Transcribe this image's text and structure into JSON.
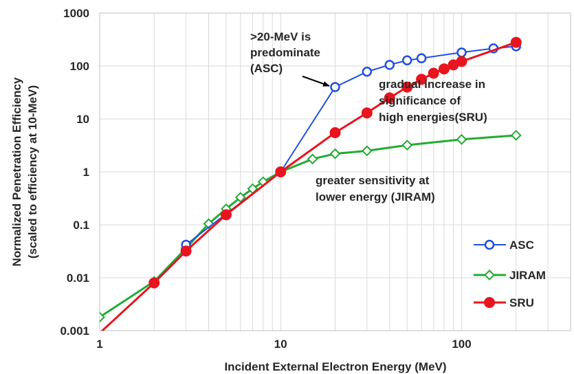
{
  "chart_data": {
    "type": "line",
    "xscale": "log",
    "yscale": "log",
    "xlim": [
      1,
      400
    ],
    "ylim": [
      0.001,
      1000
    ],
    "grid": true,
    "legend_position": "bottom-right",
    "xlabel": "Incident External Electron Energy (MeV)",
    "ylabel": [
      "Normalized Penetration Efficiency",
      "(scaled to efficiency at 10-MeV)"
    ],
    "x_ticks": [
      1,
      10,
      100
    ],
    "x_tick_labels": [
      "1",
      "10",
      "100"
    ],
    "y_ticks": [
      0.001,
      0.01,
      0.1,
      1,
      10,
      100,
      1000
    ],
    "y_tick_labels": [
      "0.001",
      "0.01",
      "0.1",
      "1",
      "10",
      "100",
      "1000"
    ],
    "series": [
      {
        "name": "ASC",
        "color": "#1f4fe0",
        "marker": "circle-open",
        "x": [
          3,
          10,
          20,
          30,
          40,
          50,
          60,
          100,
          150,
          200
        ],
        "y": [
          0.042,
          1,
          40,
          78,
          105,
          128,
          140,
          180,
          215,
          235
        ]
      },
      {
        "name": "JIRAM",
        "color": "#22aa33",
        "marker": "diamond-open",
        "x": [
          1,
          2,
          3,
          4,
          5,
          6,
          7,
          8,
          10,
          15,
          20,
          30,
          50,
          100,
          200
        ],
        "y": [
          0.0018,
          0.0085,
          0.036,
          0.105,
          0.2,
          0.33,
          0.48,
          0.65,
          1,
          1.75,
          2.2,
          2.5,
          3.2,
          4.1,
          4.9
        ]
      },
      {
        "name": "SRU",
        "color": "#e8141e",
        "marker": "circle-filled",
        "x": [
          1,
          2,
          3,
          5,
          10,
          20,
          30,
          40,
          50,
          60,
          70,
          80,
          90,
          100,
          200
        ],
        "y": [
          0.0009,
          0.008,
          0.032,
          0.155,
          1,
          5.5,
          13,
          25,
          40,
          56,
          73,
          88,
          105,
          122,
          280
        ]
      }
    ],
    "annotations": [
      {
        "lines": [
          ">20-MeV is",
          "predominate",
          "(ASC)"
        ],
        "arrow_to": [
          20,
          40
        ]
      },
      {
        "lines": [
          "gradual increase in",
          "significance of",
          "high energies(SRU)"
        ]
      },
      {
        "lines": [
          "greater sensitivity at",
          "lower energy (JIRAM)"
        ]
      }
    ]
  }
}
